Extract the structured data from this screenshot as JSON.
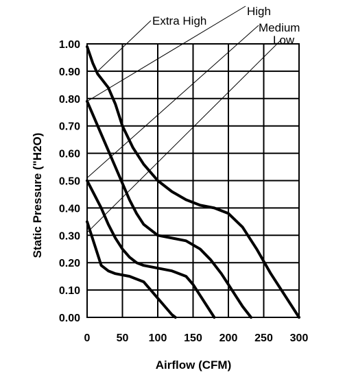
{
  "chart_data": {
    "type": "line",
    "title": "",
    "xlabel": "Airflow (CFM)",
    "ylabel": "Static Pressure (\"H2O)",
    "xlim": [
      0,
      300
    ],
    "ylim": [
      0,
      1.0
    ],
    "grid": true,
    "x_ticks": [
      0,
      50,
      100,
      150,
      200,
      250,
      300
    ],
    "x_tick_labels": [
      "0",
      "50",
      "100",
      "150",
      "200",
      "250",
      "300"
    ],
    "y_ticks": [
      0,
      0.1,
      0.2,
      0.3,
      0.4,
      0.5,
      0.6,
      0.7,
      0.8,
      0.9,
      1.0
    ],
    "y_tick_labels": [
      "0.00",
      "0.10",
      "0.20",
      "0.30",
      "0.40",
      "0.50",
      "0.60",
      "0.70",
      "0.80",
      "0.90",
      "1.00"
    ],
    "series": [
      {
        "name": "Extra High",
        "color": "#000000",
        "x": [
          0,
          8,
          15,
          30,
          40,
          50,
          65,
          80,
          100,
          120,
          140,
          160,
          180,
          200,
          220,
          240,
          260,
          280,
          300
        ],
        "y": [
          0.99,
          0.93,
          0.89,
          0.84,
          0.78,
          0.7,
          0.62,
          0.56,
          0.5,
          0.46,
          0.43,
          0.41,
          0.4,
          0.38,
          0.33,
          0.25,
          0.16,
          0.08,
          0.0
        ]
      },
      {
        "name": "High",
        "color": "#000000",
        "x": [
          0,
          10,
          20,
          30,
          40,
          50,
          60,
          70,
          80,
          100,
          120,
          140,
          160,
          175,
          190,
          200,
          210,
          220,
          232
        ],
        "y": [
          0.79,
          0.73,
          0.67,
          0.61,
          0.55,
          0.49,
          0.43,
          0.38,
          0.34,
          0.3,
          0.29,
          0.28,
          0.25,
          0.21,
          0.16,
          0.12,
          0.08,
          0.04,
          0.0
        ]
      },
      {
        "name": "Medium",
        "color": "#000000",
        "x": [
          0,
          10,
          20,
          30,
          40,
          50,
          60,
          70,
          80,
          100,
          120,
          140,
          150,
          160,
          170,
          180
        ],
        "y": [
          0.5,
          0.45,
          0.4,
          0.34,
          0.29,
          0.25,
          0.22,
          0.2,
          0.19,
          0.18,
          0.17,
          0.15,
          0.12,
          0.08,
          0.04,
          0.0
        ]
      },
      {
        "name": "Low",
        "color": "#000000",
        "x": [
          0,
          10,
          20,
          30,
          40,
          50,
          60,
          70,
          80,
          90,
          100,
          110,
          120,
          125
        ],
        "y": [
          0.35,
          0.27,
          0.19,
          0.17,
          0.16,
          0.155,
          0.15,
          0.14,
          0.13,
          0.1,
          0.07,
          0.04,
          0.01,
          0.0
        ]
      }
    ],
    "legend": [
      {
        "label": "Extra High",
        "point": [
          15,
          0.9
        ]
      },
      {
        "label": "High",
        "point": [
          0,
          0.79
        ]
      },
      {
        "label": "Medium",
        "point": [
          0,
          0.51
        ]
      },
      {
        "label": "Low",
        "point": [
          0,
          0.31
        ]
      }
    ]
  }
}
